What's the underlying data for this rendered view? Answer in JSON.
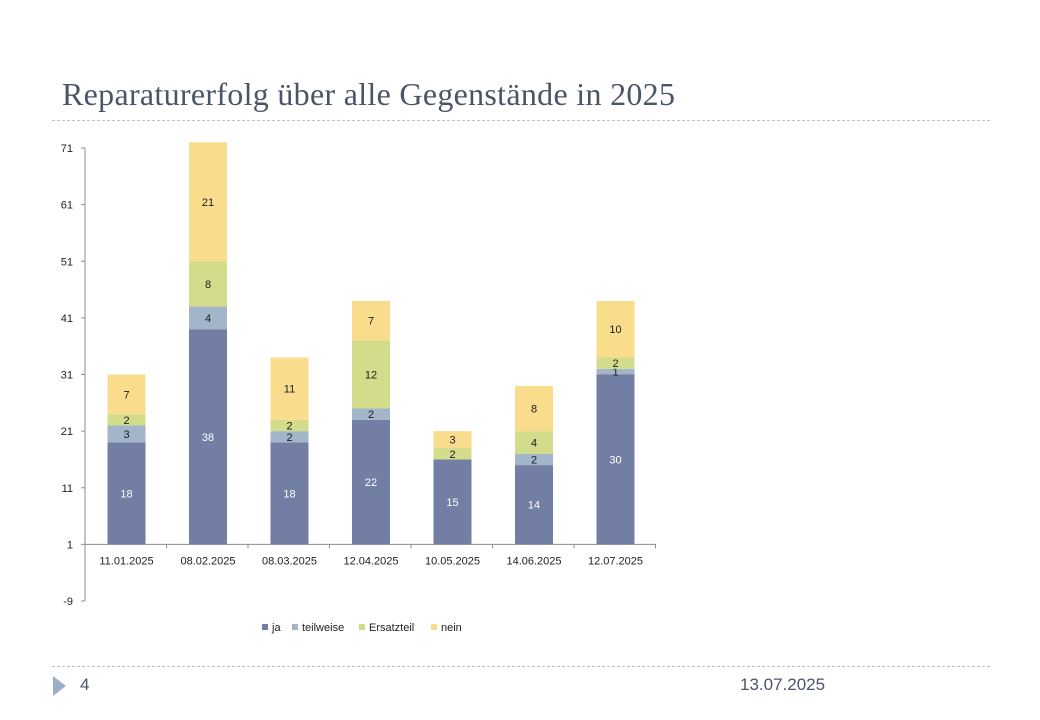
{
  "slide": {
    "title": "Reparaturerfolg über alle Gegenstände in 2025",
    "number": "4",
    "date": "13.07.2025"
  },
  "chart_data": {
    "type": "bar",
    "stacked": true,
    "categories": [
      "11.01.2025",
      "08.02.2025",
      "08.03.2025",
      "12.04.2025",
      "10.05.2025",
      "14.06.2025",
      "12.07.2025"
    ],
    "series": [
      {
        "name": "ja",
        "color": "#727ea4",
        "values": [
          18,
          38,
          18,
          22,
          15,
          14,
          30
        ]
      },
      {
        "name": "teilweise",
        "color": "#a3b6c9",
        "values": [
          3,
          4,
          2,
          2,
          0,
          2,
          1
        ]
      },
      {
        "name": "Ersatzteil",
        "color": "#d3dc8a",
        "values": [
          2,
          8,
          2,
          12,
          2,
          4,
          2
        ]
      },
      {
        "name": "nein",
        "color": "#f9dc8c",
        "values": [
          7,
          21,
          11,
          7,
          3,
          8,
          10
        ]
      }
    ],
    "ylim": [
      -9,
      71
    ],
    "yticks": [
      -9,
      1,
      11,
      21,
      31,
      41,
      51,
      61,
      71
    ],
    "baseline": 1,
    "grid": false,
    "legend": "bottom"
  }
}
